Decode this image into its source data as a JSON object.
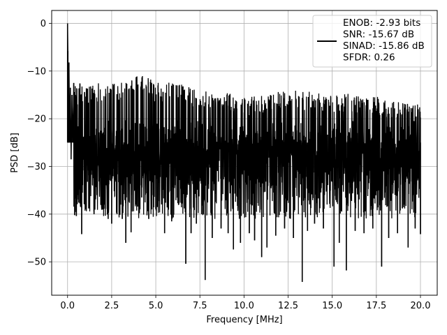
{
  "chart_data": {
    "type": "line",
    "xlabel": "Frequency [MHz]",
    "ylabel": "PSD [dB]",
    "xlim": [
      -0.9,
      20.95
    ],
    "ylim": [
      -57,
      2.7
    ],
    "x_ticks": [
      0.0,
      2.5,
      5.0,
      7.5,
      10.0,
      12.5,
      15.0,
      17.5,
      20.0
    ],
    "x_tick_labels": [
      "0.0",
      "2.5",
      "5.0",
      "7.5",
      "10.0",
      "12.5",
      "15.0",
      "17.5",
      "20.0"
    ],
    "y_ticks": [
      0,
      -10,
      -20,
      -30,
      -40,
      -50
    ],
    "y_tick_labels": [
      "0",
      "−10",
      "−20",
      "−30",
      "−40",
      "−50"
    ],
    "grid": true,
    "legend_position": "top-right",
    "legend_lines": [
      "ENOB: -2.93 bits",
      "SNR: -15.67 dB",
      "SINAD: -15.86 dB",
      "SFDR: 0.26"
    ],
    "series_color": "#000000",
    "series": [
      {
        "points": [
          [
            0.0,
            0.0
          ],
          [
            0.02,
            -5.8
          ],
          [
            0.05,
            -19.0
          ],
          [
            0.08,
            -8.2
          ],
          [
            0.12,
            -22.5
          ],
          [
            0.16,
            -13.5
          ],
          [
            0.2,
            -28.5
          ],
          [
            0.25,
            -15.0
          ],
          [
            0.3,
            -25.0
          ],
          [
            0.35,
            -12.5
          ],
          [
            0.4,
            -40.2
          ],
          [
            0.45,
            -15.0
          ],
          [
            0.5,
            -40.4
          ],
          [
            0.55,
            -17.0
          ],
          [
            0.6,
            -36.0
          ],
          [
            0.7,
            -12.6
          ],
          [
            0.8,
            -44.2
          ],
          [
            1.0,
            -33.0
          ],
          [
            1.2,
            -38.8
          ],
          [
            1.5,
            -40.0
          ],
          [
            2.0,
            -39.0
          ],
          [
            2.3,
            -41.0
          ],
          [
            2.5,
            -42.0
          ],
          [
            2.8,
            -40.0
          ],
          [
            3.1,
            -41.0
          ],
          [
            3.3,
            -46.0
          ],
          [
            3.6,
            -43.8
          ],
          [
            3.9,
            -38.0
          ],
          [
            4.2,
            -36.5
          ],
          [
            4.6,
            -41.0
          ],
          [
            5.1,
            -38.5
          ],
          [
            5.5,
            -44.0
          ],
          [
            5.9,
            -41.5
          ],
          [
            6.3,
            -38.0
          ],
          [
            6.7,
            -50.4
          ],
          [
            7.0,
            -44.0
          ],
          [
            7.3,
            -42.0
          ],
          [
            7.6,
            -40.0
          ],
          [
            7.8,
            -53.8
          ],
          [
            8.2,
            -45.0
          ],
          [
            8.7,
            -43.0
          ],
          [
            9.1,
            -44.0
          ],
          [
            9.4,
            -47.4
          ],
          [
            9.8,
            -46.0
          ],
          [
            10.3,
            -44.0
          ],
          [
            10.6,
            -45.5
          ],
          [
            11.0,
            -49.0
          ],
          [
            11.3,
            -47.0
          ],
          [
            11.8,
            -44.5
          ],
          [
            12.3,
            -43.0
          ],
          [
            12.8,
            -45.0
          ],
          [
            13.3,
            -54.2
          ],
          [
            13.6,
            -43.5
          ],
          [
            14.0,
            -42.0
          ],
          [
            14.5,
            -43.0
          ],
          [
            15.1,
            -51.0
          ],
          [
            15.4,
            -46.0
          ],
          [
            15.8,
            -51.8
          ],
          [
            16.3,
            -43.5
          ],
          [
            16.8,
            -44.0
          ],
          [
            17.3,
            -43.0
          ],
          [
            17.8,
            -51.0
          ],
          [
            18.2,
            -45.0
          ],
          [
            18.7,
            -44.0
          ],
          [
            19.3,
            -47.0
          ],
          [
            19.7,
            -43.0
          ],
          [
            20.0,
            -44.2
          ]
        ],
        "noise_floor_band": [
          -22,
          -33
        ],
        "upper_envelope": [
          [
            0.35,
            -12.5
          ],
          [
            0.9,
            -12.8
          ],
          [
            1.5,
            -12.5
          ],
          [
            2.5,
            -12.7
          ],
          [
            3.5,
            -12.0
          ],
          [
            4.2,
            -10.5
          ],
          [
            5.0,
            -12.5
          ],
          [
            6.0,
            -12.3
          ],
          [
            7.0,
            -13.5
          ],
          [
            8.5,
            -14.0
          ],
          [
            10.0,
            -15.5
          ],
          [
            11.5,
            -14.5
          ],
          [
            12.5,
            -13.6
          ],
          [
            14.0,
            -14.5
          ],
          [
            15.5,
            -14.7
          ],
          [
            17.0,
            -15.0
          ],
          [
            18.5,
            -16.0
          ],
          [
            20.0,
            -17.0
          ]
        ]
      }
    ]
  }
}
